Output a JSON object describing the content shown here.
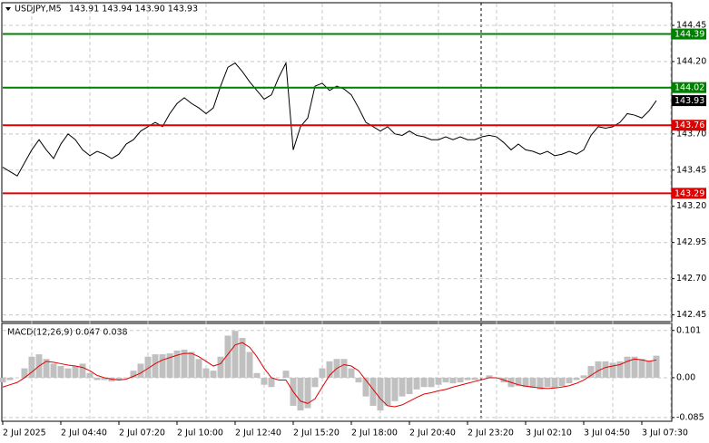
{
  "chart_data": [
    {
      "type": "line",
      "title": "USDJPY,M5",
      "subtitle": "143.91 143.94 143.90 143.93",
      "color": "#000000",
      "values": [
        143.47,
        143.44,
        143.41,
        143.5,
        143.59,
        143.66,
        143.59,
        143.53,
        143.63,
        143.7,
        143.66,
        143.59,
        143.55,
        143.58,
        143.56,
        143.53,
        143.56,
        143.63,
        143.66,
        143.72,
        143.75,
        143.78,
        143.75,
        143.84,
        143.91,
        143.95,
        143.91,
        143.88,
        143.84,
        143.88,
        144.03,
        144.16,
        144.19,
        144.13,
        144.06,
        144.0,
        143.94,
        143.97,
        144.09,
        144.19,
        143.59,
        143.75,
        143.81,
        144.03,
        144.05,
        144.0,
        144.03,
        144.01,
        143.97,
        143.88,
        143.78,
        143.75,
        143.72,
        143.75,
        143.7,
        143.69,
        143.72,
        143.69,
        143.68,
        143.66,
        143.66,
        143.68,
        143.66,
        143.68,
        143.66,
        143.66,
        143.68,
        143.69,
        143.68,
        143.64,
        143.59,
        143.63,
        143.59,
        143.58,
        143.56,
        143.58,
        143.55,
        143.56,
        143.58,
        143.56,
        143.59,
        143.69,
        143.75,
        143.74,
        143.75,
        143.78,
        143.84,
        143.83,
        143.81,
        143.86,
        143.93
      ],
      "ylim": [
        142.41,
        144.6
      ],
      "yticks": [
        144.45,
        {
          "value": 144.2,
          "label": "144.20"
        },
        {
          "value": 143.7,
          "label": "143.70"
        },
        143.45,
        {
          "value": 143.2,
          "label": "143.20"
        },
        142.95,
        {
          "value": 142.7,
          "label": "142.70"
        },
        142.45
      ],
      "xticks": [
        {
          "value": 0,
          "label": "2 Jul 2025"
        },
        {
          "value": 8,
          "label": "2 Jul 04:40"
        },
        {
          "value": 16,
          "label": "2 Jul 07:20"
        },
        {
          "value": 24,
          "label": "2 Jul 10:00"
        },
        {
          "value": 32,
          "label": "2 Jul 12:40"
        },
        {
          "value": 40,
          "label": "2 Jul 15:20"
        },
        {
          "value": 48,
          "label": "2 Jul 18:00"
        },
        {
          "value": 56,
          "label": "2 Jul 20:40"
        },
        {
          "value": 64,
          "label": "2 Jul 23:20"
        },
        {
          "value": 72,
          "label": "3 Jul 02:10"
        },
        {
          "value": 80,
          "label": "3 Jul 04:50"
        },
        {
          "value": 88,
          "label": "3 Jul 07:30"
        }
      ],
      "levels": [
        {
          "value": 144.39,
          "color": "#008000"
        },
        {
          "value": 144.02,
          "color": "#008000"
        },
        {
          "value": 143.76,
          "color": "#e00000"
        },
        {
          "value": 143.29,
          "color": "#e00000"
        }
      ],
      "last_price": 143.93,
      "grid": true
    },
    {
      "type": "macd",
      "title": "MACD(12,26,9) 0.047 0.038",
      "histogram": {
        "color": "#c0c0c0",
        "values": [
          -0.01,
          -0.005,
          0,
          0.02,
          0.045,
          0.05,
          0.04,
          0.03,
          0.025,
          0.02,
          0.025,
          0.03,
          0.01,
          -0.005,
          -0.005,
          -0.008,
          -0.005,
          0,
          0.015,
          0.03,
          0.045,
          0.05,
          0.05,
          0.052,
          0.058,
          0.06,
          0.055,
          0.04,
          0.02,
          0.015,
          0.045,
          0.09,
          0.1,
          0.085,
          0.055,
          0.01,
          -0.015,
          -0.02,
          0,
          0.015,
          -0.06,
          -0.07,
          -0.065,
          -0.02,
          0.02,
          0.035,
          0.04,
          0.04,
          0.02,
          -0.01,
          -0.04,
          -0.06,
          -0.07,
          -0.06,
          -0.05,
          -0.04,
          -0.035,
          -0.025,
          -0.02,
          -0.02,
          -0.015,
          -0.01,
          -0.012,
          -0.01,
          -0.005,
          -0.005,
          0,
          0.005,
          0,
          -0.01,
          -0.02,
          -0.018,
          -0.02,
          -0.022,
          -0.025,
          -0.02,
          -0.022,
          -0.018,
          -0.012,
          -0.005,
          0.005,
          0.025,
          0.035,
          0.035,
          0.032,
          0.035,
          0.045,
          0.045,
          0.04,
          0.035,
          0.047
        ]
      },
      "signal": {
        "color": "#e00000",
        "values": [
          -0.02,
          -0.015,
          -0.01,
          0,
          0.012,
          0.025,
          0.035,
          0.033,
          0.03,
          0.027,
          0.025,
          0.022,
          0.015,
          0.005,
          0,
          -0.003,
          -0.005,
          -0.003,
          0.003,
          0.01,
          0.02,
          0.03,
          0.038,
          0.043,
          0.048,
          0.052,
          0.052,
          0.045,
          0.035,
          0.025,
          0.03,
          0.05,
          0.07,
          0.075,
          0.065,
          0.045,
          0.02,
          0,
          -0.005,
          -0.005,
          -0.03,
          -0.05,
          -0.055,
          -0.045,
          -0.02,
          0.005,
          0.02,
          0.028,
          0.025,
          0.015,
          -0.005,
          -0.025,
          -0.045,
          -0.06,
          -0.062,
          -0.058,
          -0.05,
          -0.042,
          -0.035,
          -0.032,
          -0.028,
          -0.025,
          -0.02,
          -0.016,
          -0.012,
          -0.008,
          -0.004,
          0,
          0,
          -0.005,
          -0.01,
          -0.015,
          -0.018,
          -0.02,
          -0.022,
          -0.023,
          -0.022,
          -0.02,
          -0.017,
          -0.012,
          -0.005,
          0.005,
          0.015,
          0.022,
          0.025,
          0.028,
          0.035,
          0.04,
          0.038,
          0.035,
          0.038
        ]
      },
      "ylim": [
        -0.093,
        0.116
      ],
      "yticks": [
        0.101,
        {
          "value": 0,
          "label": "0.00"
        },
        -0.085
      ],
      "grid": true
    }
  ]
}
